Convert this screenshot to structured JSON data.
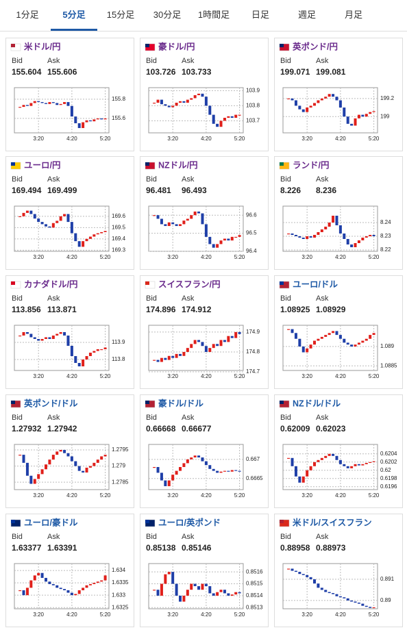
{
  "tabs": [
    "1分足",
    "5分足",
    "15分足",
    "30分足",
    "1時間足",
    "日足",
    "週足",
    "月足"
  ],
  "selected_tab": 1,
  "labels": {
    "bid": "Bid",
    "ask": "Ask"
  },
  "time_axis": {
    "xlim": [
      -1.5,
      24
    ],
    "xticks": [
      {
        "value": 5,
        "label": "3:20"
      },
      {
        "value": 14,
        "label": "4:20"
      },
      {
        "value": 23,
        "label": "5:20"
      }
    ]
  },
  "panels": [
    {
      "name": "米ドル/円",
      "title_color": "#6a2b8c",
      "flag": [
        "#b22234",
        "#ffffff"
      ],
      "bid": "155.604",
      "ask": "155.606",
      "chart": {
        "type": "candlestick",
        "ylim": [
          155.45,
          155.92
        ],
        "yticks": [
          155.6,
          155.8
        ],
        "values": [
          155.72,
          155.74,
          155.73,
          155.76,
          155.78,
          155.77,
          155.76,
          155.75,
          155.77,
          155.76,
          155.74,
          155.75,
          155.77,
          155.73,
          155.62,
          155.55,
          155.5,
          155.56,
          155.58,
          155.57,
          155.59,
          155.6,
          155.59,
          155.6
        ]
      }
    },
    {
      "name": "豪ドル/円",
      "title_color": "#6a2b8c",
      "flag": [
        "#012169",
        "#e4002b"
      ],
      "bid": "103.726",
      "ask": "103.733",
      "chart": {
        "type": "candlestick",
        "ylim": [
          103.62,
          103.92
        ],
        "yticks": [
          103.7,
          103.8,
          103.9
        ],
        "values": [
          103.82,
          103.84,
          103.81,
          103.8,
          103.79,
          103.8,
          103.82,
          103.83,
          103.82,
          103.84,
          103.85,
          103.87,
          103.88,
          103.86,
          103.8,
          103.74,
          103.68,
          103.66,
          103.7,
          103.72,
          103.73,
          103.72,
          103.74,
          103.74
        ]
      }
    },
    {
      "name": "英ポンド/円",
      "title_color": "#6a2b8c",
      "flag": [
        "#012169",
        "#c8102e"
      ],
      "bid": "199.071",
      "ask": "199.081",
      "chart": {
        "type": "candlestick",
        "ylim": [
          198.82,
          199.32
        ],
        "yticks": [
          199,
          199.2
        ],
        "values": [
          199.2,
          199.18,
          199.12,
          199.08,
          199.05,
          199.1,
          199.12,
          199.15,
          199.18,
          199.2,
          199.22,
          199.25,
          199.22,
          199.18,
          199.1,
          199.0,
          198.92,
          198.9,
          198.98,
          199.02,
          199.0,
          199.03,
          199.05,
          199.06
        ]
      }
    },
    {
      "name": "ユーロ/円",
      "title_color": "#6a2b8c",
      "flag": [
        "#003399",
        "#ffcc00"
      ],
      "bid": "169.494",
      "ask": "169.499",
      "chart": {
        "type": "candlestick",
        "ylim": [
          169.29,
          169.69
        ],
        "yticks": [
          169.3,
          169.4,
          169.5,
          169.6
        ],
        "values": [
          169.6,
          169.63,
          169.65,
          169.62,
          169.58,
          169.55,
          169.53,
          169.51,
          169.5,
          169.54,
          169.56,
          169.6,
          169.62,
          169.55,
          169.45,
          169.38,
          169.33,
          169.38,
          169.4,
          169.42,
          169.44,
          169.45,
          169.46,
          169.47
        ]
      }
    },
    {
      "name": "NZドル/円",
      "title_color": "#6a2b8c",
      "flag": [
        "#012169",
        "#c8102e"
      ],
      "bid": "96.481",
      "ask": "96.493",
      "chart": {
        "type": "candlestick",
        "ylim": [
          96.4,
          96.65
        ],
        "yticks": [
          96.4,
          96.5,
          96.6
        ],
        "values": [
          96.6,
          96.58,
          96.55,
          96.54,
          96.56,
          96.55,
          96.54,
          96.55,
          96.57,
          96.58,
          96.6,
          96.62,
          96.61,
          96.55,
          96.48,
          96.44,
          96.42,
          96.44,
          96.46,
          96.47,
          96.46,
          96.48,
          96.48,
          96.49
        ]
      }
    },
    {
      "name": "ランド/円",
      "title_color": "#6a2b8c",
      "flag": [
        "#007a4d",
        "#ffb612"
      ],
      "bid": "8.226",
      "ask": "8.236",
      "chart": {
        "type": "candlestick",
        "ylim": [
          8.219,
          8.252
        ],
        "yticks": [
          8.22,
          8.23,
          8.24
        ],
        "values": [
          8.232,
          8.231,
          8.23,
          8.229,
          8.228,
          8.23,
          8.229,
          8.231,
          8.233,
          8.235,
          8.237,
          8.24,
          8.245,
          8.238,
          8.232,
          8.228,
          8.224,
          8.222,
          8.225,
          8.227,
          8.229,
          8.23,
          8.231,
          8.23
        ]
      }
    },
    {
      "name": "カナダドル/円",
      "title_color": "#6a2b8c",
      "flag": [
        "#d80621",
        "#ffffff"
      ],
      "bid": "113.856",
      "ask": "113.871",
      "chart": {
        "type": "candlestick",
        "ylim": [
          113.736,
          114.0
        ],
        "yticks": [
          113.8,
          113.9
        ],
        "values": [
          113.94,
          113.96,
          113.95,
          113.93,
          113.92,
          113.91,
          113.92,
          113.93,
          113.92,
          113.94,
          113.95,
          113.96,
          113.94,
          113.88,
          113.82,
          113.78,
          113.76,
          113.8,
          113.82,
          113.84,
          113.85,
          113.86,
          113.86,
          113.87
        ]
      }
    },
    {
      "name": "スイスフラン/円",
      "title_color": "#6a2b8c",
      "flag": [
        "#da291c",
        "#ffffff"
      ],
      "bid": "174.896",
      "ask": "174.912",
      "chart": {
        "type": "candlestick",
        "ylim": [
          174.707,
          174.934
        ],
        "yticks": [
          174.7,
          174.8,
          174.9
        ],
        "values": [
          174.76,
          174.75,
          174.77,
          174.76,
          174.78,
          174.77,
          174.79,
          174.78,
          174.8,
          174.82,
          174.84,
          174.86,
          174.85,
          174.83,
          174.8,
          174.82,
          174.84,
          174.83,
          174.86,
          174.85,
          174.88,
          174.87,
          174.9,
          174.89
        ]
      }
    },
    {
      "name": "ユーロ/ドル",
      "title_color": "#1f5aa6",
      "flag": [
        "#003399",
        "#b22234"
      ],
      "bid": "1.08925",
      "ask": "1.08929",
      "chart": {
        "type": "candlestick",
        "ylim": [
          1.08838,
          1.08955
        ],
        "yticks": [
          1.0885,
          1.089
        ],
        "values": [
          1.08945,
          1.08935,
          1.0892,
          1.089,
          1.08885,
          1.08895,
          1.08905,
          1.08915,
          1.0892,
          1.08925,
          1.0893,
          1.08935,
          1.0894,
          1.0893,
          1.0892,
          1.0891,
          1.08905,
          1.089,
          1.08905,
          1.0891,
          1.08915,
          1.0892,
          1.0893,
          1.08935
        ]
      }
    },
    {
      "name": "英ポンド/ドル",
      "title_color": "#1f5aa6",
      "flag": [
        "#012169",
        "#b22234"
      ],
      "bid": "1.27932",
      "ask": "1.27942",
      "chart": {
        "type": "candlestick",
        "ylim": [
          1.27827,
          1.27967
        ],
        "yticks": [
          1.2785,
          1.279,
          1.2795
        ],
        "values": [
          1.27935,
          1.2791,
          1.2787,
          1.27845,
          1.2786,
          1.27875,
          1.2789,
          1.27905,
          1.2792,
          1.27935,
          1.27945,
          1.2795,
          1.2794,
          1.2793,
          1.27915,
          1.279,
          1.27885,
          1.2788,
          1.27895,
          1.279,
          1.2791,
          1.2792,
          1.2793,
          1.27935
        ]
      }
    },
    {
      "name": "豪ドル/ドル",
      "title_color": "#1f5aa6",
      "flag": [
        "#012169",
        "#b22234"
      ],
      "bid": "0.66668",
      "ask": "0.66677",
      "chart": {
        "type": "candlestick",
        "ylim": [
          0.66621,
          0.66739
        ],
        "yticks": [
          0.6665,
          0.667
        ],
        "values": [
          0.6668,
          0.66665,
          0.66645,
          0.6663,
          0.66645,
          0.6666,
          0.6667,
          0.6668,
          0.6669,
          0.667,
          0.66705,
          0.6671,
          0.66705,
          0.66695,
          0.66685,
          0.66675,
          0.6667,
          0.66665,
          0.66668,
          0.6667,
          0.66668,
          0.66672,
          0.6667,
          0.66668
        ]
      }
    },
    {
      "name": "NZドル/ドル",
      "title_color": "#1f5aa6",
      "flag": [
        "#012169",
        "#b22234"
      ],
      "bid": "0.62009",
      "ask": "0.62023",
      "chart": {
        "type": "candlestick",
        "ylim": [
          0.61953,
          0.62063
        ],
        "yticks": [
          0.6196,
          0.6198,
          0.62,
          0.6202,
          0.6204
        ],
        "values": [
          0.6203,
          0.6201,
          0.61985,
          0.6197,
          0.61985,
          0.62,
          0.6201,
          0.6202,
          0.62025,
          0.6203,
          0.62035,
          0.6204,
          0.62035,
          0.62025,
          0.62015,
          0.6201,
          0.62005,
          0.6201,
          0.62015,
          0.62012,
          0.62015,
          0.62018,
          0.6202,
          0.62022
        ]
      }
    },
    {
      "name": "ユーロ/豪ドル",
      "title_color": "#1f5aa6",
      "flag": [
        "#003399",
        "#012169"
      ],
      "bid": "1.63377",
      "ask": "1.63391",
      "chart": {
        "type": "candlestick",
        "ylim": [
          1.63245,
          1.63428
        ],
        "yticks": [
          1.6325,
          1.633,
          1.6335,
          1.634
        ],
        "values": [
          1.6332,
          1.633,
          1.6333,
          1.6336,
          1.6338,
          1.6339,
          1.6337,
          1.63355,
          1.63345,
          1.6334,
          1.6333,
          1.63325,
          1.6332,
          1.6331,
          1.633,
          1.63305,
          1.6332,
          1.6333,
          1.6334,
          1.63345,
          1.6335,
          1.63355,
          1.6336,
          1.6338
        ]
      }
    },
    {
      "name": "ユーロ/英ポンド",
      "title_color": "#1f5aa6",
      "flag": [
        "#003399",
        "#012169"
      ],
      "bid": "0.85138",
      "ask": "0.85146",
      "chart": {
        "type": "candlestick",
        "ylim": [
          0.85129,
          0.85167
        ],
        "yticks": [
          0.8513,
          0.8514,
          0.8515,
          0.8516
        ],
        "values": [
          0.85145,
          0.8514,
          0.8515,
          0.85158,
          0.8516,
          0.8515,
          0.8514,
          0.85135,
          0.8514,
          0.85145,
          0.8515,
          0.85148,
          0.85145,
          0.8515,
          0.85148,
          0.85142,
          0.8514,
          0.85143,
          0.85145,
          0.85142,
          0.8514,
          0.85141,
          0.85143,
          0.85142
        ]
      }
    },
    {
      "name": "米ドル/スイスフラン",
      "title_color": "#1f5aa6",
      "flag": [
        "#b22234",
        "#da291c"
      ],
      "bid": "0.88958",
      "ask": "0.88973",
      "chart": {
        "type": "candlestick",
        "ylim": [
          0.88961,
          0.89174
        ],
        "yticks": [
          0.89,
          0.891
        ],
        "values": [
          0.8915,
          0.8914,
          0.89135,
          0.89125,
          0.8912,
          0.8911,
          0.891,
          0.8908,
          0.8906,
          0.8905,
          0.8904,
          0.89035,
          0.8903,
          0.8902,
          0.89015,
          0.8901,
          0.89,
          0.88995,
          0.8899,
          0.88985,
          0.88975,
          0.8897,
          0.88965,
          0.88968
        ]
      }
    }
  ]
}
